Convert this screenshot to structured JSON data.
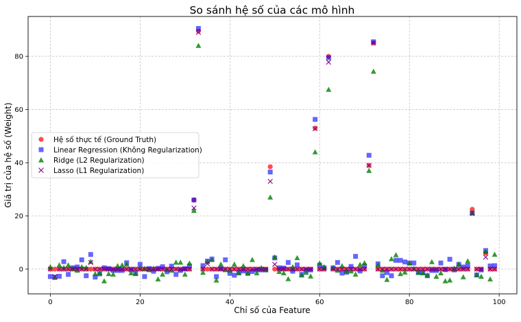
{
  "chart_data": {
    "type": "scatter",
    "title": "So sánh hệ số của các mô hình",
    "xlabel": "Chỉ số của Feature",
    "ylabel": "Giá trị của hệ số (Weight)",
    "xlim": [
      -4.95,
      103.95
    ],
    "ylim": [
      -9.3,
      95
    ],
    "xticks": [
      0,
      20,
      40,
      60,
      80,
      100
    ],
    "yticks": [
      0,
      20,
      40,
      60,
      80
    ],
    "grid": true,
    "legend_position": "center-left",
    "x": [
      0,
      1,
      2,
      3,
      4,
      5,
      6,
      7,
      8,
      9,
      10,
      11,
      12,
      13,
      14,
      15,
      16,
      17,
      18,
      19,
      20,
      21,
      22,
      23,
      24,
      25,
      26,
      27,
      28,
      29,
      30,
      31,
      32,
      33,
      34,
      35,
      36,
      37,
      38,
      39,
      40,
      41,
      42,
      43,
      44,
      45,
      46,
      47,
      48,
      49,
      50,
      51,
      52,
      53,
      54,
      55,
      56,
      57,
      58,
      59,
      60,
      61,
      62,
      63,
      64,
      65,
      66,
      67,
      68,
      69,
      70,
      71,
      72,
      73,
      74,
      75,
      76,
      77,
      78,
      79,
      80,
      81,
      82,
      83,
      84,
      85,
      86,
      87,
      88,
      89,
      90,
      91,
      92,
      93,
      94,
      95,
      96,
      97,
      98,
      99
    ],
    "series": [
      {
        "name": "Hệ số thực tế (Ground Truth)",
        "marker": "circle",
        "color": "#ff0000",
        "values": [
          0,
          0,
          0,
          0,
          0,
          0,
          0,
          0,
          0,
          0,
          0,
          0,
          0,
          0,
          0,
          0,
          0,
          0,
          0,
          0,
          0,
          0,
          0,
          0,
          0,
          0,
          0,
          0,
          0,
          0,
          0,
          0,
          26,
          89.5,
          0,
          0,
          0,
          0,
          0,
          0,
          0,
          0,
          0,
          0,
          0,
          0,
          0,
          0,
          0,
          38.5,
          0,
          0,
          0,
          0,
          0,
          0,
          0,
          0,
          0,
          53,
          0,
          0,
          80,
          0,
          0,
          0,
          0,
          0,
          0,
          0,
          0,
          39,
          85,
          0,
          0,
          0,
          0,
          0,
          0,
          0,
          0,
          0,
          0,
          0,
          0,
          0,
          0,
          0,
          0,
          0,
          0,
          0,
          0,
          0,
          22.5,
          0,
          0,
          6,
          0,
          0
        ]
      },
      {
        "name": "Linear Regression (Không Regularization)",
        "marker": "square",
        "color": "#0000ff",
        "values": [
          -2.8,
          -3,
          -2.7,
          2.8,
          -2,
          0.5,
          0.8,
          3.5,
          -2.5,
          5.5,
          -3,
          -1.8,
          0.5,
          0.2,
          -0.5,
          -0.5,
          -0.5,
          2.4,
          -0.3,
          -1.5,
          1.8,
          -2.8,
          0.2,
          -0.8,
          0.3,
          0.9,
          -1,
          1.1,
          -2,
          -0.5,
          0.2,
          1.2,
          26,
          90.5,
          1.3,
          3,
          3.8,
          -2.8,
          0.3,
          3.5,
          -1.6,
          -2.3,
          -1.3,
          -0.7,
          -1.6,
          -0.9,
          -0.3,
          -0.3,
          -0.3,
          36.5,
          4.2,
          0.5,
          0.4,
          2.5,
          -0.8,
          1.6,
          -2,
          -0.5,
          -0.3,
          56.3,
          1.5,
          0.5,
          79.5,
          0.5,
          2.5,
          -1.5,
          -1.2,
          1,
          4.8,
          -0.7,
          1.2,
          42.8,
          85.5,
          2,
          -2.5,
          -1.3,
          -2.5,
          3.3,
          3.3,
          2.7,
          2.3,
          2.3,
          -1.3,
          -1.3,
          -2.5,
          -0.5,
          -0.5,
          2.3,
          -0.2,
          3.7,
          -0.3,
          1.8,
          0.8,
          1.3,
          21,
          -2.2,
          -0.3,
          7,
          1.2,
          1.3
        ]
      },
      {
        "name": "Ridge (L2 Regularization)",
        "marker": "triangle",
        "color": "#008000",
        "values": [
          0.8,
          -3.2,
          1.5,
          0.5,
          1.5,
          0.2,
          -0.5,
          0.8,
          0.5,
          2.8,
          -1.8,
          -1.5,
          -4.5,
          -1.8,
          -2,
          1.2,
          1.5,
          1.8,
          -1.5,
          -1.8,
          0.5,
          0.2,
          -0.3,
          0.3,
          -3.8,
          -2,
          -0.3,
          -0.5,
          2.5,
          2.5,
          -2,
          2.2,
          22,
          84,
          -1.3,
          2.8,
          3.5,
          -4.2,
          1.8,
          -0.3,
          -0.5,
          1.8,
          -1.5,
          1.2,
          -1.5,
          3.5,
          -1.5,
          0.5,
          -0.3,
          27,
          4.5,
          -1,
          -1.5,
          -3.7,
          0.8,
          4.2,
          -2.3,
          -1.3,
          -2.7,
          44,
          2.2,
          0.8,
          67.5,
          0.5,
          -0.5,
          1.2,
          -0.8,
          -0.8,
          -2,
          1.7,
          2.3,
          37,
          74.3,
          1.5,
          -0.5,
          -4,
          3.8,
          5.3,
          -1.8,
          -1.2,
          2.2,
          0.2,
          -1.3,
          -1.5,
          -2.3,
          2.7,
          -2.8,
          -1.5,
          -4.5,
          -4.2,
          0.3,
          1.8,
          -3,
          3,
          21.2,
          -2.2,
          -2.8,
          6.5,
          -3.8,
          5.5
        ]
      },
      {
        "name": "Lasso (L1 Regularization)",
        "marker": "x",
        "color": "#800080",
        "values": [
          0,
          -2.8,
          0,
          0,
          0,
          0,
          0,
          0,
          0,
          2.5,
          0,
          0,
          0,
          0,
          0,
          0,
          0,
          0,
          0,
          0,
          0,
          0,
          0,
          0,
          0,
          0,
          0,
          0,
          0,
          0,
          0,
          0,
          23,
          89,
          0,
          2,
          0,
          0,
          0,
          0,
          0,
          0,
          0,
          0,
          0,
          0,
          0,
          0,
          0,
          33,
          1.8,
          0,
          0,
          0,
          0,
          0,
          0,
          0,
          0,
          52.8,
          0,
          0,
          77.8,
          0,
          0,
          0,
          0,
          0,
          0,
          0,
          0,
          39,
          85,
          0,
          0,
          0,
          0,
          0,
          0,
          0,
          0,
          0,
          0,
          0,
          0,
          0,
          0,
          0,
          0,
          0,
          0,
          0,
          0,
          0,
          21,
          0,
          0,
          4.5,
          0,
          0
        ]
      }
    ]
  }
}
